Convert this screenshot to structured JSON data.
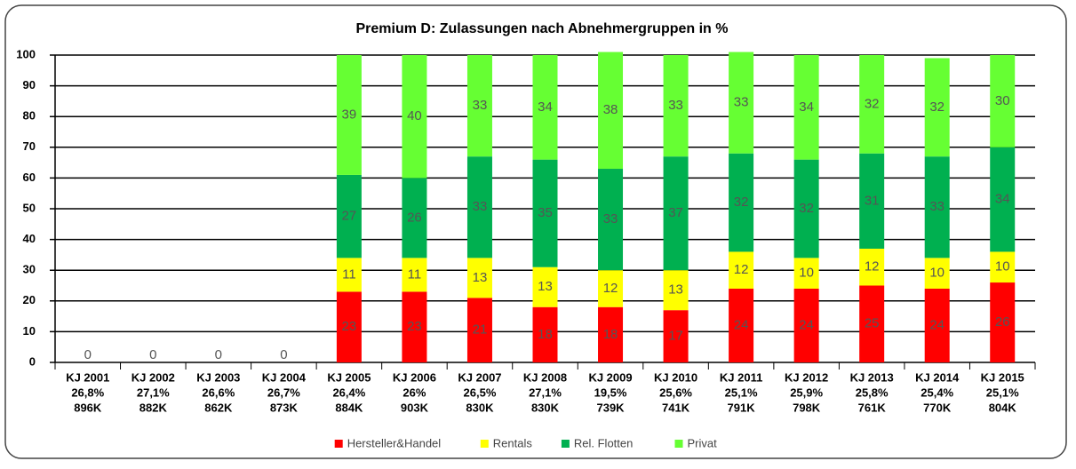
{
  "chart_data": {
    "type": "stacked_bar",
    "title": "Premium D: Zulassungen nach Abnehmergruppen in %",
    "categories": [
      [
        "KJ 2001",
        "26,8%",
        "896K"
      ],
      [
        "KJ 2002",
        "27,1%",
        "882K"
      ],
      [
        "KJ 2003",
        "26,6%",
        "862K"
      ],
      [
        "KJ 2004",
        "26,7%",
        "873K"
      ],
      [
        "KJ 2005",
        "26,4%",
        "884K"
      ],
      [
        "KJ 2006",
        "26%",
        "903K"
      ],
      [
        "KJ 2007",
        "26,5%",
        "830K"
      ],
      [
        "KJ 2008",
        "27,1%",
        "830K"
      ],
      [
        "KJ 2009",
        "19,5%",
        "739K"
      ],
      [
        "KJ 2010",
        "25,6%",
        "741K"
      ],
      [
        "KJ 2011",
        "25,1%",
        "791K"
      ],
      [
        "KJ 2012",
        "25,9%",
        "798K"
      ],
      [
        "KJ 2013",
        "25,8%",
        "761K"
      ],
      [
        "KJ 2014",
        "25,4%",
        "770K"
      ],
      [
        "KJ 2015",
        "25,1%",
        "804K"
      ]
    ],
    "series": [
      {
        "name": "Hersteller&Handel",
        "color": "#ff0000",
        "values": [
          0,
          0,
          0,
          0,
          23,
          23,
          21,
          18,
          18,
          17,
          24,
          24,
          25,
          24,
          26
        ]
      },
      {
        "name": "Rentals",
        "color": "#ffff00",
        "values": [
          0,
          0,
          0,
          0,
          11,
          11,
          13,
          13,
          12,
          13,
          12,
          10,
          12,
          10,
          10
        ]
      },
      {
        "name": "Rel. Flotten",
        "color": "#00b050",
        "values": [
          0,
          0,
          0,
          0,
          27,
          26,
          33,
          35,
          33,
          37,
          32,
          32,
          31,
          33,
          34
        ]
      },
      {
        "name": "Privat",
        "color": "#66ff33",
        "values": [
          0,
          0,
          0,
          0,
          39,
          40,
          33,
          34,
          38,
          33,
          33,
          34,
          32,
          32,
          30
        ]
      }
    ],
    "ylim": [
      0,
      100
    ],
    "yticks": [
      0,
      10,
      20,
      30,
      40,
      50,
      60,
      70,
      80,
      90,
      100
    ],
    "grid": true,
    "legend": "bottom"
  }
}
